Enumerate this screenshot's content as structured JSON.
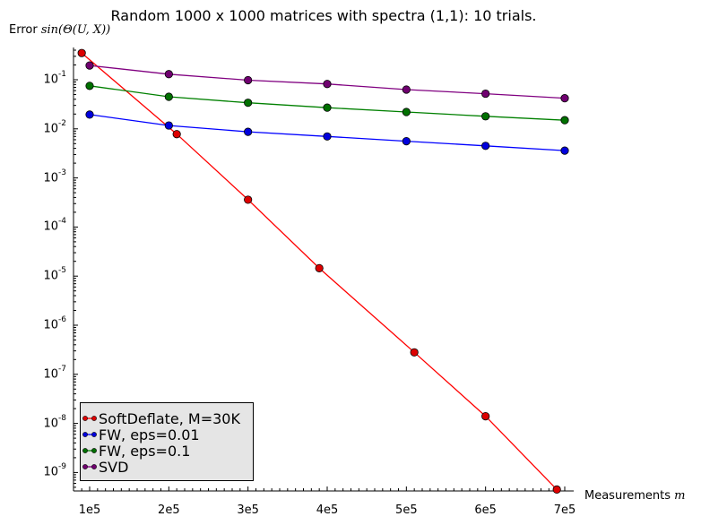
{
  "chart_data": {
    "type": "line",
    "title": "Random 1000 x 1000 matrices with spectra (1,1): 10 trials.",
    "ylabel_prefix": "Error",
    "ylabel_math": "sin(Θ(U, X))",
    "xlabel_prefix": "Measurements",
    "xlabel_math": "m",
    "y_scale": "log",
    "ylim": [
      4e-10,
      0.4
    ],
    "xlim": [
      80000,
      710000
    ],
    "x_ticks": [
      "1e5",
      "2e5",
      "3e5",
      "4e5",
      "5e5",
      "6e5",
      "7e5"
    ],
    "x_tick_values": [
      100000,
      200000,
      300000,
      400000,
      500000,
      600000,
      700000
    ],
    "y_tick_exponents": [
      -1,
      -2,
      -3,
      -4,
      -5,
      -6,
      -7,
      -8,
      -9
    ],
    "y_tick_base": "10",
    "grid": false,
    "legend_position": "bottom-left",
    "series": [
      {
        "name": "SoftDeflate, M=30K",
        "color": "#ff0000",
        "marker_fill": "#dd0000",
        "x": [
          90000,
          210000,
          300000,
          390000,
          510000,
          600000,
          690000
        ],
        "y": [
          0.35,
          0.0078,
          0.00036,
          1.45e-05,
          2.8e-07,
          1.4e-08,
          4.5e-10
        ]
      },
      {
        "name": "FW, eps=0.01",
        "color": "#0000ff",
        "marker_fill": "#0000dd",
        "x": [
          100000,
          200000,
          300000,
          400000,
          500000,
          600000,
          700000
        ],
        "y": [
          0.0195,
          0.0117,
          0.0087,
          0.007,
          0.0056,
          0.0045,
          0.0036
        ]
      },
      {
        "name": "FW, eps=0.1",
        "color": "#008000",
        "marker_fill": "#007000",
        "x": [
          100000,
          200000,
          300000,
          400000,
          500000,
          600000,
          700000
        ],
        "y": [
          0.075,
          0.045,
          0.034,
          0.027,
          0.022,
          0.018,
          0.015
        ]
      },
      {
        "name": "SVD",
        "color": "#800080",
        "marker_fill": "#700070",
        "x": [
          100000,
          200000,
          300000,
          400000,
          500000,
          600000,
          700000
        ],
        "y": [
          0.195,
          0.13,
          0.098,
          0.082,
          0.063,
          0.052,
          0.042
        ]
      }
    ]
  }
}
